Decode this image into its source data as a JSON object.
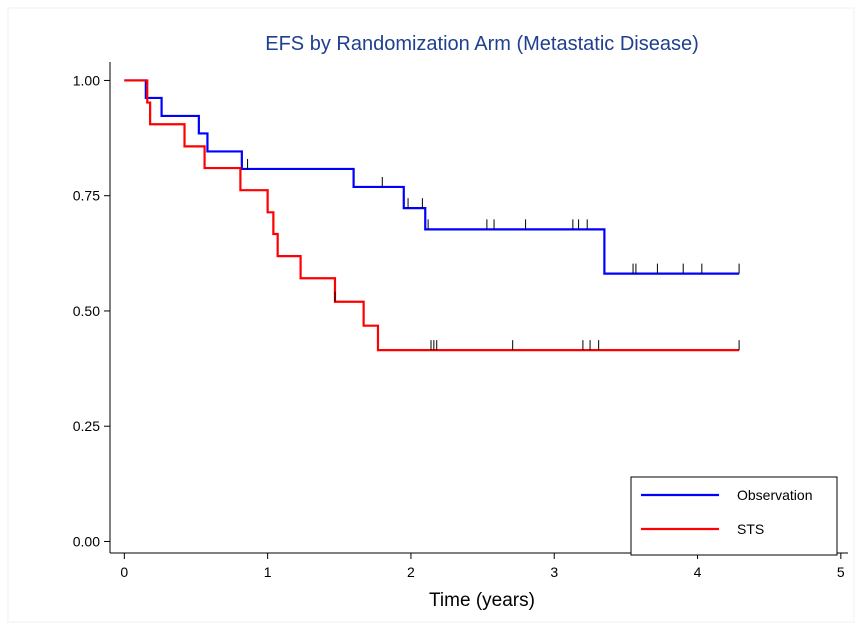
{
  "chart_data": {
    "type": "line",
    "title": "EFS by Randomization Arm (Metastatic Disease)",
    "xlabel": "Time (years)",
    "ylabel": "",
    "xlim": [
      -0.1,
      5.05
    ],
    "ylim": [
      -0.025,
      1.04
    ],
    "x_ticks": [
      {
        "value": 0,
        "label": "0"
      },
      {
        "value": 1,
        "label": "1"
      },
      {
        "value": 2,
        "label": "2"
      },
      {
        "value": 3,
        "label": "3"
      },
      {
        "value": 4,
        "label": "4"
      },
      {
        "value": 5,
        "label": "5"
      }
    ],
    "y_ticks": [
      {
        "value": 0.0,
        "label": "0.00"
      },
      {
        "value": 0.25,
        "label": "0.25"
      },
      {
        "value": 0.5,
        "label": "0.50"
      },
      {
        "value": 0.75,
        "label": "0.75"
      },
      {
        "value": 1.0,
        "label": "1.00"
      }
    ],
    "legend_position": "bottom-right",
    "series": [
      {
        "name": "Observation",
        "color": "#0000ff",
        "steps": [
          [
            0,
            1.0
          ],
          [
            0.15,
            0.962
          ],
          [
            0.26,
            0.923
          ],
          [
            0.52,
            0.885
          ],
          [
            0.58,
            0.846
          ],
          [
            0.82,
            0.808
          ],
          [
            1.6,
            0.769
          ],
          [
            1.95,
            0.723
          ],
          [
            2.1,
            0.677
          ],
          [
            3.35,
            0.581
          ],
          [
            4.29,
            0.581
          ]
        ],
        "censored": [
          0.86,
          1.8,
          1.98,
          2.08,
          2.12,
          2.53,
          2.58,
          2.8,
          3.13,
          3.17,
          3.23,
          3.55,
          3.57,
          3.72,
          3.9,
          4.03,
          4.29
        ]
      },
      {
        "name": "STS",
        "color": "#ff0000",
        "steps": [
          [
            0,
            1.0
          ],
          [
            0.16,
            0.952
          ],
          [
            0.18,
            0.905
          ],
          [
            0.42,
            0.857
          ],
          [
            0.56,
            0.81
          ],
          [
            0.81,
            0.762
          ],
          [
            1.0,
            0.714
          ],
          [
            1.04,
            0.667
          ],
          [
            1.07,
            0.619
          ],
          [
            1.23,
            0.571
          ],
          [
            1.47,
            0.52
          ],
          [
            1.67,
            0.468
          ],
          [
            1.77,
            0.415
          ],
          [
            4.29,
            0.415
          ]
        ],
        "censored": [
          1.47,
          2.14,
          2.16,
          2.18,
          2.71,
          3.2,
          3.25,
          3.31,
          4.29
        ]
      }
    ]
  }
}
